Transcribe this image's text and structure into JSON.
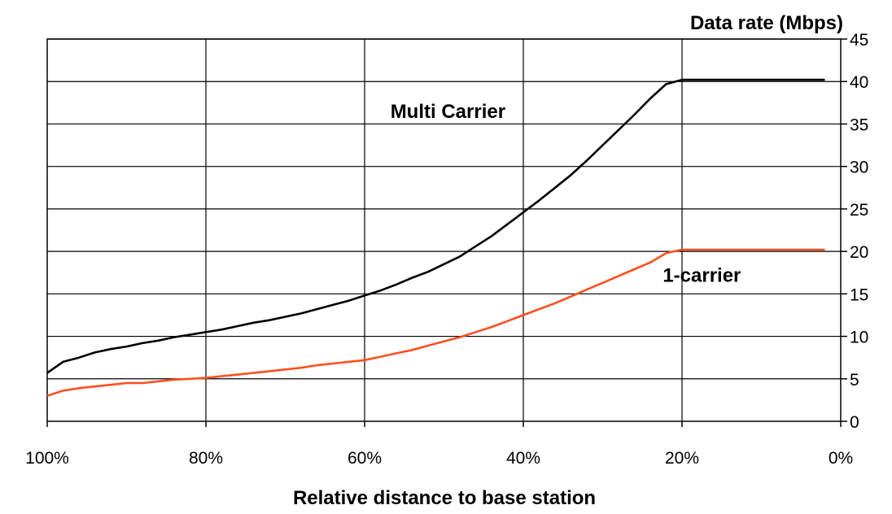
{
  "chart_data": {
    "type": "line",
    "ylabel": "Data rate (Mbps)",
    "xlabel": "Relative distance to base station",
    "xlim": [
      100,
      0
    ],
    "ylim": [
      0,
      45
    ],
    "x_ticks": [
      "100%",
      "80%",
      "60%",
      "40%",
      "20%",
      "0%"
    ],
    "y_ticks": [
      "0",
      "5",
      "10",
      "15",
      "20",
      "25",
      "30",
      "35",
      "40",
      "45"
    ],
    "x_tick_values": [
      100,
      80,
      60,
      40,
      20,
      0
    ],
    "y_tick_values": [
      0,
      5,
      10,
      15,
      20,
      25,
      30,
      35,
      40,
      45
    ],
    "grid": true,
    "series": [
      {
        "name": "Multi Carrier",
        "color": "#000000",
        "points": [
          [
            100,
            5.7
          ],
          [
            98,
            7.0
          ],
          [
            96,
            7.5
          ],
          [
            94,
            8.1
          ],
          [
            92,
            8.5
          ],
          [
            90,
            8.8
          ],
          [
            88,
            9.2
          ],
          [
            86,
            9.5
          ],
          [
            84,
            9.9
          ],
          [
            82,
            10.2
          ],
          [
            80,
            10.5
          ],
          [
            78,
            10.8
          ],
          [
            76,
            11.2
          ],
          [
            74,
            11.6
          ],
          [
            72,
            11.9
          ],
          [
            70,
            12.3
          ],
          [
            68,
            12.7
          ],
          [
            66,
            13.2
          ],
          [
            64,
            13.7
          ],
          [
            62,
            14.2
          ],
          [
            60,
            14.8
          ],
          [
            58,
            15.4
          ],
          [
            56,
            16.1
          ],
          [
            54,
            16.9
          ],
          [
            52,
            17.6
          ],
          [
            50,
            18.5
          ],
          [
            48,
            19.4
          ],
          [
            46,
            20.6
          ],
          [
            44,
            21.8
          ],
          [
            42,
            23.2
          ],
          [
            40,
            24.6
          ],
          [
            38,
            26.0
          ],
          [
            36,
            27.5
          ],
          [
            34,
            29.0
          ],
          [
            32,
            30.7
          ],
          [
            30,
            32.5
          ],
          [
            28,
            34.3
          ],
          [
            26,
            36.1
          ],
          [
            24,
            38.0
          ],
          [
            22,
            39.7
          ],
          [
            20,
            40.2
          ],
          [
            10,
            40.2
          ],
          [
            2,
            40.2
          ]
        ]
      },
      {
        "name": "1-carrier",
        "color": "#ff4f1f",
        "points": [
          [
            100,
            3.0
          ],
          [
            98,
            3.6
          ],
          [
            96,
            3.9
          ],
          [
            94,
            4.1
          ],
          [
            92,
            4.3
          ],
          [
            90,
            4.5
          ],
          [
            88,
            4.5
          ],
          [
            86,
            4.7
          ],
          [
            84,
            4.9
          ],
          [
            82,
            5.0
          ],
          [
            80,
            5.1
          ],
          [
            78,
            5.3
          ],
          [
            76,
            5.5
          ],
          [
            74,
            5.7
          ],
          [
            72,
            5.9
          ],
          [
            70,
            6.1
          ],
          [
            68,
            6.3
          ],
          [
            66,
            6.6
          ],
          [
            64,
            6.8
          ],
          [
            62,
            7.0
          ],
          [
            60,
            7.2
          ],
          [
            58,
            7.6
          ],
          [
            56,
            8.0
          ],
          [
            54,
            8.4
          ],
          [
            52,
            8.9
          ],
          [
            50,
            9.4
          ],
          [
            48,
            9.9
          ],
          [
            46,
            10.5
          ],
          [
            44,
            11.1
          ],
          [
            42,
            11.8
          ],
          [
            40,
            12.5
          ],
          [
            38,
            13.2
          ],
          [
            36,
            13.9
          ],
          [
            34,
            14.7
          ],
          [
            32,
            15.5
          ],
          [
            30,
            16.3
          ],
          [
            28,
            17.1
          ],
          [
            26,
            17.9
          ],
          [
            24,
            18.7
          ],
          [
            22,
            19.8
          ],
          [
            20,
            20.2
          ],
          [
            10,
            20.2
          ],
          [
            2,
            20.2
          ]
        ]
      }
    ],
    "annotations": [
      {
        "text": "Multi Carrier",
        "x": 49.5,
        "y": 35.7
      },
      {
        "text": "1-carrier",
        "x": 17.5,
        "y": 16.4
      }
    ]
  }
}
